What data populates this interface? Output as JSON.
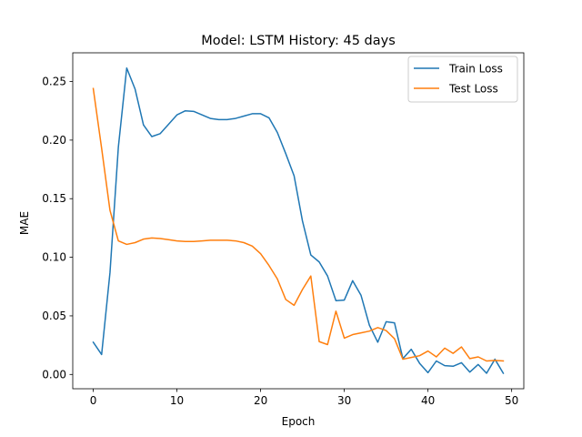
{
  "chart_data": {
    "type": "line",
    "title": "Model: LSTM  History: 45 days",
    "xlabel": "Epoch",
    "ylabel": "MAE",
    "xlim": [
      -2.45,
      51.45
    ],
    "ylim": [
      -0.0122,
      0.2745
    ],
    "xticks": [
      0,
      10,
      20,
      30,
      40,
      50
    ],
    "yticks": [
      0.0,
      0.05,
      0.1,
      0.15,
      0.2,
      0.25
    ],
    "ytick_labels": [
      "0.00",
      "0.05",
      "0.10",
      "0.15",
      "0.20",
      "0.25"
    ],
    "grid": false,
    "legend_position": "top-right",
    "x": [
      0,
      1,
      2,
      3,
      4,
      5,
      6,
      7,
      8,
      9,
      10,
      11,
      12,
      13,
      14,
      15,
      16,
      17,
      18,
      19,
      20,
      21,
      22,
      23,
      24,
      25,
      26,
      27,
      28,
      29,
      30,
      31,
      32,
      33,
      34,
      35,
      36,
      37,
      38,
      39,
      40,
      41,
      42,
      43,
      44,
      45,
      46,
      47,
      48,
      49
    ],
    "series": [
      {
        "name": "Train Loss",
        "color": "#1f77b4",
        "values": [
          0.0275,
          0.017,
          0.087,
          0.194,
          0.2615,
          0.2435,
          0.213,
          0.203,
          0.2055,
          0.2135,
          0.2215,
          0.225,
          0.2245,
          0.2215,
          0.2185,
          0.2175,
          0.2175,
          0.2185,
          0.2205,
          0.2225,
          0.2225,
          0.219,
          0.2065,
          0.1885,
          0.1695,
          0.131,
          0.102,
          0.096,
          0.084,
          0.063,
          0.0635,
          0.08,
          0.0675,
          0.042,
          0.0275,
          0.045,
          0.044,
          0.0135,
          0.0215,
          0.0095,
          0.0015,
          0.0115,
          0.0075,
          0.007,
          0.01,
          0.002,
          0.0085,
          0.001,
          0.013,
          0.001
        ]
      },
      {
        "name": "Test Loss",
        "color": "#ff7f0e",
        "values": [
          0.244,
          0.193,
          0.14,
          0.114,
          0.111,
          0.1125,
          0.1155,
          0.1165,
          0.116,
          0.115,
          0.114,
          0.1135,
          0.1135,
          0.114,
          0.1145,
          0.1145,
          0.1145,
          0.114,
          0.1125,
          0.1095,
          0.103,
          0.093,
          0.0815,
          0.064,
          0.059,
          0.0725,
          0.084,
          0.028,
          0.0255,
          0.054,
          0.031,
          0.034,
          0.0355,
          0.037,
          0.04,
          0.0375,
          0.0305,
          0.013,
          0.0145,
          0.016,
          0.02,
          0.015,
          0.0225,
          0.018,
          0.0235,
          0.0135,
          0.015,
          0.0115,
          0.012,
          0.0115
        ]
      }
    ]
  }
}
